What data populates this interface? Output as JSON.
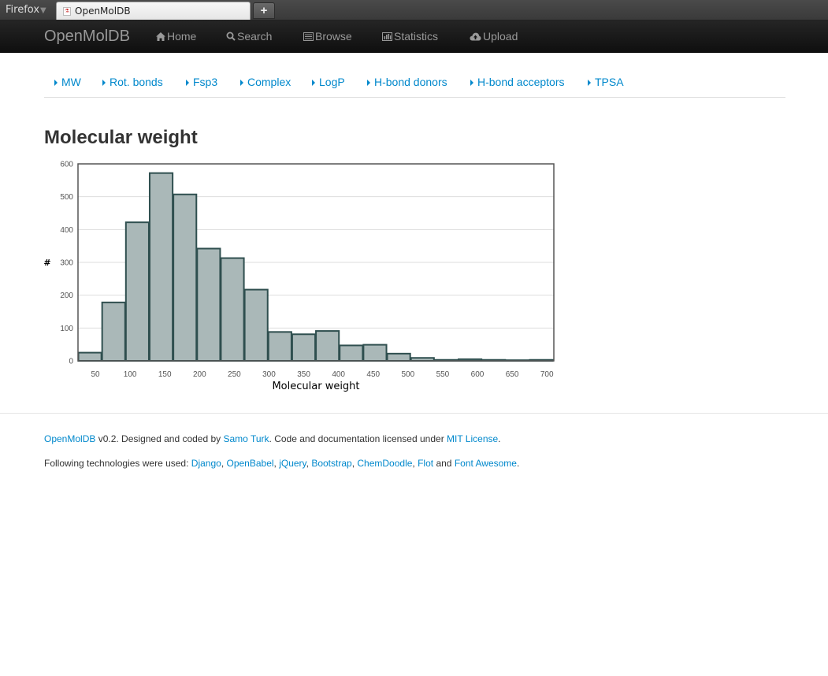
{
  "browser": {
    "menu_label": "Firefox",
    "tab_title": "OpenMolDB",
    "new_tab_label": "+"
  },
  "navbar": {
    "brand": "OpenMolDB",
    "items": [
      {
        "label": "Home",
        "icon": "home-icon"
      },
      {
        "label": "Search",
        "icon": "search-icon"
      },
      {
        "label": "Browse",
        "icon": "list-icon"
      },
      {
        "label": "Statistics",
        "icon": "bar-chart-icon"
      },
      {
        "label": "Upload",
        "icon": "cloud-upload-icon"
      }
    ]
  },
  "subnav": {
    "items": [
      {
        "label": "MW"
      },
      {
        "label": "Rot. bonds"
      },
      {
        "label": "Fsp3"
      },
      {
        "label": "Complex"
      },
      {
        "label": "LogP"
      },
      {
        "label": "H-bond donors"
      },
      {
        "label": "H-bond acceptors"
      },
      {
        "label": "TPSA"
      }
    ]
  },
  "page": {
    "title": "Molecular weight"
  },
  "chart_data": {
    "type": "bar",
    "xlabel": "Molecular weight",
    "ylabel": "#",
    "xlim": [
      25,
      710
    ],
    "ylim": [
      0,
      600
    ],
    "bin_width": 34.2,
    "x_ticks": [
      50,
      100,
      150,
      200,
      250,
      300,
      350,
      400,
      450,
      500,
      550,
      600,
      650,
      700
    ],
    "y_ticks": [
      0,
      100,
      200,
      300,
      400,
      500,
      600
    ],
    "bins_start": [
      25,
      59.2,
      93.4,
      127.6,
      161.8,
      196,
      230.2,
      264.4,
      298.6,
      332.8,
      367,
      401.2,
      435.4,
      469.6,
      503.8,
      538,
      572.2,
      606.4,
      640.6,
      674.8
    ],
    "values": [
      25,
      178,
      422,
      572,
      507,
      342,
      313,
      217,
      88,
      81,
      91,
      47,
      49,
      22,
      9,
      3,
      5,
      3,
      2,
      3
    ],
    "grid": true,
    "colors": {
      "fill": "#aab8b8",
      "stroke": "#2f4f4f",
      "grid": "#dddddd",
      "axis": "#555555"
    }
  },
  "footer": {
    "line1": {
      "link1": "OpenMolDB",
      "text1": " v0.2. Designed and coded by ",
      "link2": "Samo Turk",
      "text2": ". Code and documentation licensed under ",
      "link3": "MIT License",
      "text3": "."
    },
    "line2": {
      "text0": "Following technologies were used: ",
      "links": [
        "Django",
        "OpenBabel",
        "jQuery",
        "Bootstrap",
        "ChemDoodle",
        "Flot",
        "Font Awesome"
      ],
      "and_text": " and "
    }
  }
}
